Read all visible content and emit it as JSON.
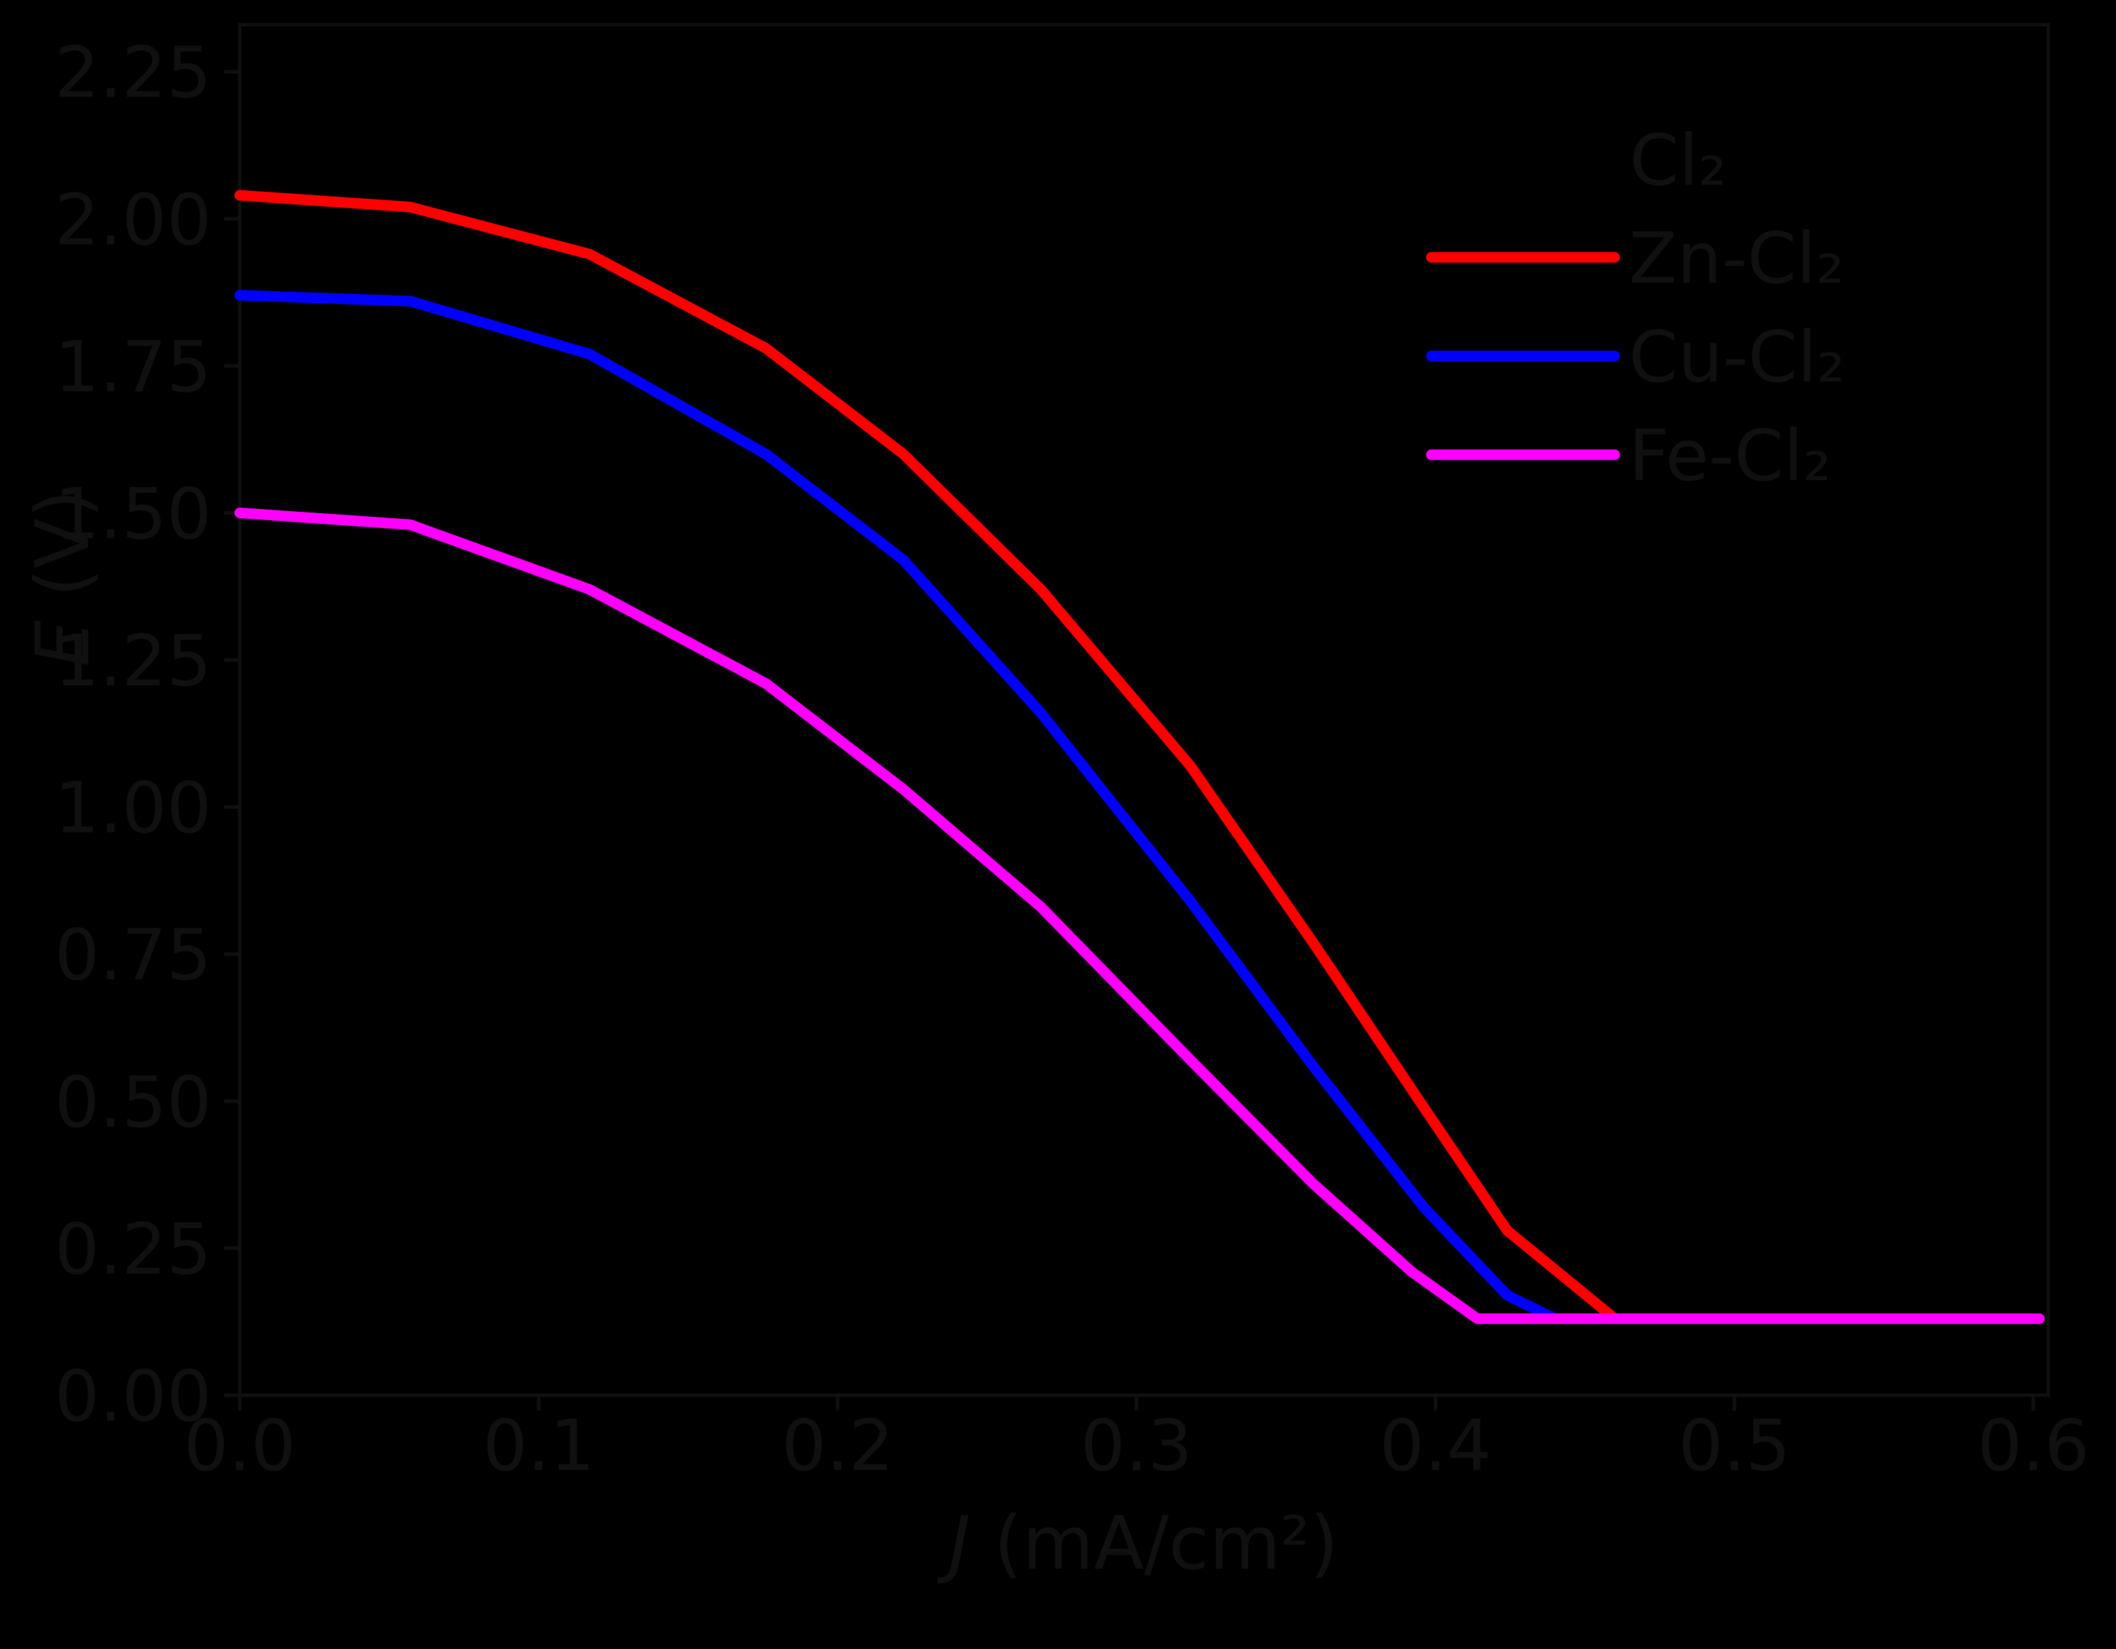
{
  "figure": {
    "background_color": "#000000",
    "text_color": "#101010"
  },
  "chart_data": {
    "type": "line",
    "title": "",
    "xlabel": "J (mA/cm²)",
    "xlabel_symbol": "J",
    "xlabel_units": " (mA/cm²)",
    "ylabel": "E (V)",
    "ylabel_symbol": "E",
    "ylabel_units": " (V)",
    "xlim": [
      0,
      0.605
    ],
    "ylim": [
      0,
      2.33
    ],
    "grid": false,
    "x_ticks": [
      0.0,
      0.1,
      0.2,
      0.3,
      0.4,
      0.5,
      0.6
    ],
    "x_tick_labels": [
      "0.0",
      "0.1",
      "0.2",
      "0.3",
      "0.4",
      "0.5",
      "0.6"
    ],
    "y_ticks": [
      0.0,
      0.25,
      0.5,
      0.75,
      1.0,
      1.25,
      1.5,
      1.75,
      2.0,
      2.25
    ],
    "y_tick_labels": [
      "0.00",
      "0.25",
      "0.50",
      "0.75",
      "1.00",
      "1.25",
      "1.50",
      "1.75",
      "2.00",
      "2.25"
    ],
    "legend": {
      "title": "Cl₂",
      "position": "upper right",
      "entries": [
        {
          "label": "Zn-Cl₂",
          "color": "#ff0000"
        },
        {
          "label": "Cu-Cl₂",
          "color": "#0000ff"
        },
        {
          "label": "Fe-Cl₂",
          "color": "#ff00ff"
        }
      ]
    },
    "series": [
      {
        "name": "Zn-Cl₂",
        "color": "#ff0000",
        "points": [
          [
            0.0,
            2.04
          ],
          [
            0.057,
            2.02
          ],
          [
            0.117,
            1.94
          ],
          [
            0.176,
            1.78
          ],
          [
            0.222,
            1.6
          ],
          [
            0.268,
            1.37
          ],
          [
            0.318,
            1.07
          ],
          [
            0.359,
            0.77
          ],
          [
            0.396,
            0.49
          ],
          [
            0.424,
            0.28
          ],
          [
            0.46,
            0.13
          ],
          [
            0.602,
            0.13
          ]
        ]
      },
      {
        "name": "Cu-Cl₂",
        "color": "#0000ff",
        "points": [
          [
            0.0,
            1.87
          ],
          [
            0.057,
            1.86
          ],
          [
            0.117,
            1.77
          ],
          [
            0.176,
            1.6
          ],
          [
            0.222,
            1.42
          ],
          [
            0.268,
            1.16
          ],
          [
            0.318,
            0.84
          ],
          [
            0.359,
            0.56
          ],
          [
            0.396,
            0.32
          ],
          [
            0.424,
            0.17
          ],
          [
            0.44,
            0.13
          ],
          [
            0.602,
            0.13
          ]
        ]
      },
      {
        "name": "Fe-Cl₂",
        "color": "#ff00ff",
        "points": [
          [
            0.0,
            1.5
          ],
          [
            0.057,
            1.48
          ],
          [
            0.117,
            1.37
          ],
          [
            0.176,
            1.21
          ],
          [
            0.222,
            1.03
          ],
          [
            0.268,
            0.83
          ],
          [
            0.318,
            0.57
          ],
          [
            0.359,
            0.36
          ],
          [
            0.392,
            0.21
          ],
          [
            0.414,
            0.13
          ],
          [
            0.602,
            0.13
          ]
        ]
      }
    ]
  }
}
